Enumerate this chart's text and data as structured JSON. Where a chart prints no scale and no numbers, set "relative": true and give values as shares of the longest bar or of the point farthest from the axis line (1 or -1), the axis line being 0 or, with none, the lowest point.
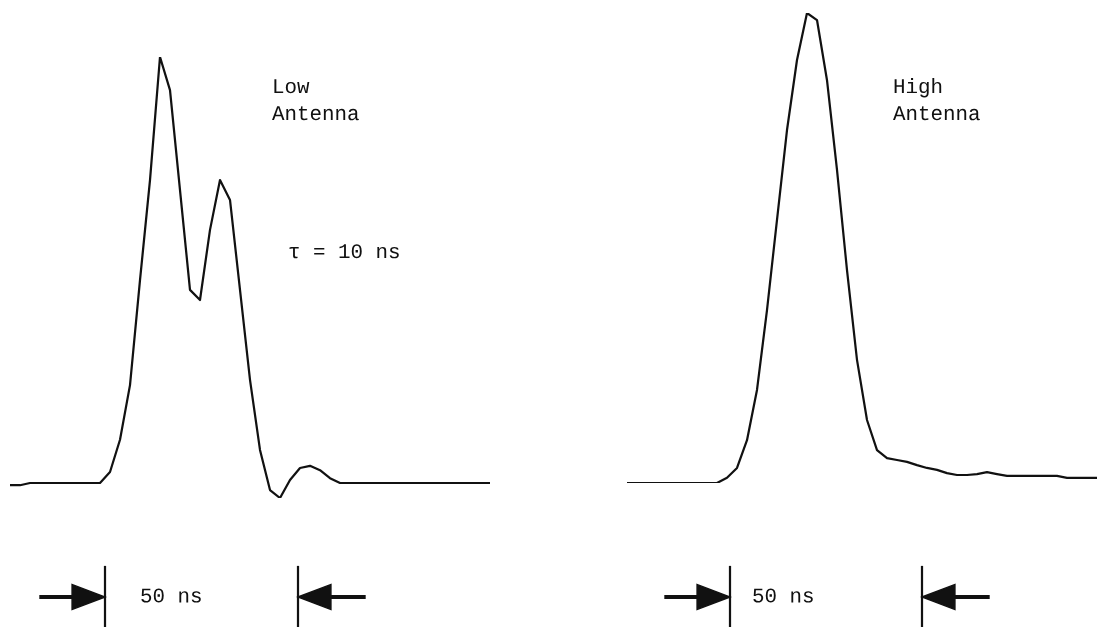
{
  "chart_data": [
    {
      "type": "line",
      "relative": true,
      "color": "#111111",
      "categories": [
        null,
        null,
        null,
        null,
        null,
        null,
        null,
        null,
        null,
        null,
        null,
        null,
        null,
        null,
        null,
        null,
        null,
        null,
        null,
        null,
        null,
        null,
        null,
        null,
        null,
        null,
        null,
        null,
        null,
        null,
        null,
        null,
        null,
        null,
        null,
        null,
        null,
        null,
        null,
        null,
        null,
        null,
        null,
        null,
        null,
        null,
        null,
        null,
        null
      ],
      "values": [
        0.029,
        0.029,
        0.034,
        0.034,
        0.034,
        0.034,
        0.034,
        0.034,
        0.034,
        0.034,
        0.059,
        0.132,
        0.256,
        0.494,
        0.721,
        1.0,
        0.925,
        0.698,
        0.472,
        0.449,
        0.608,
        0.721,
        0.676,
        0.472,
        0.268,
        0.109,
        0.018,
        0,
        0.041,
        0.068,
        0.073,
        0.063,
        0.045,
        0.034,
        0.034,
        0.034,
        0.034,
        0.034,
        0.034,
        0.034,
        0.034,
        0.034,
        0.034,
        0.034,
        0.034,
        0.034,
        0.034,
        0.034,
        0.034
      ],
      "annotations": [
        "Low\nAntenna",
        "τ = 10 ns",
        "50 ns"
      ]
    },
    {
      "type": "line",
      "relative": true,
      "color": "#111111",
      "categories": [
        null,
        null,
        null,
        null,
        null,
        null,
        null,
        null,
        null,
        null,
        null,
        null,
        null,
        null,
        null,
        null,
        null,
        null,
        null,
        null,
        null,
        null,
        null,
        null,
        null,
        null,
        null,
        null,
        null,
        null,
        null,
        null,
        null,
        null,
        null,
        null,
        null,
        null,
        null,
        null,
        null,
        null,
        null,
        null,
        null,
        null,
        null,
        null
      ],
      "values": [
        0,
        0,
        0,
        0,
        0,
        0,
        0,
        0,
        0,
        0,
        0.011,
        0.032,
        0.091,
        0.198,
        0.368,
        0.56,
        0.751,
        0.9,
        1,
        0.985,
        0.857,
        0.666,
        0.453,
        0.262,
        0.134,
        0.07,
        0.053,
        0.049,
        0.045,
        0.038,
        0.032,
        0.028,
        0.021,
        0.017,
        0.017,
        0.019,
        0.023,
        0.019,
        0.015,
        0.015,
        0.015,
        0.015,
        0.015,
        0.015,
        0.011,
        0.011,
        0.011,
        0.011
      ],
      "annotations": [
        "High\nAntenna",
        "50 ns"
      ]
    }
  ]
}
